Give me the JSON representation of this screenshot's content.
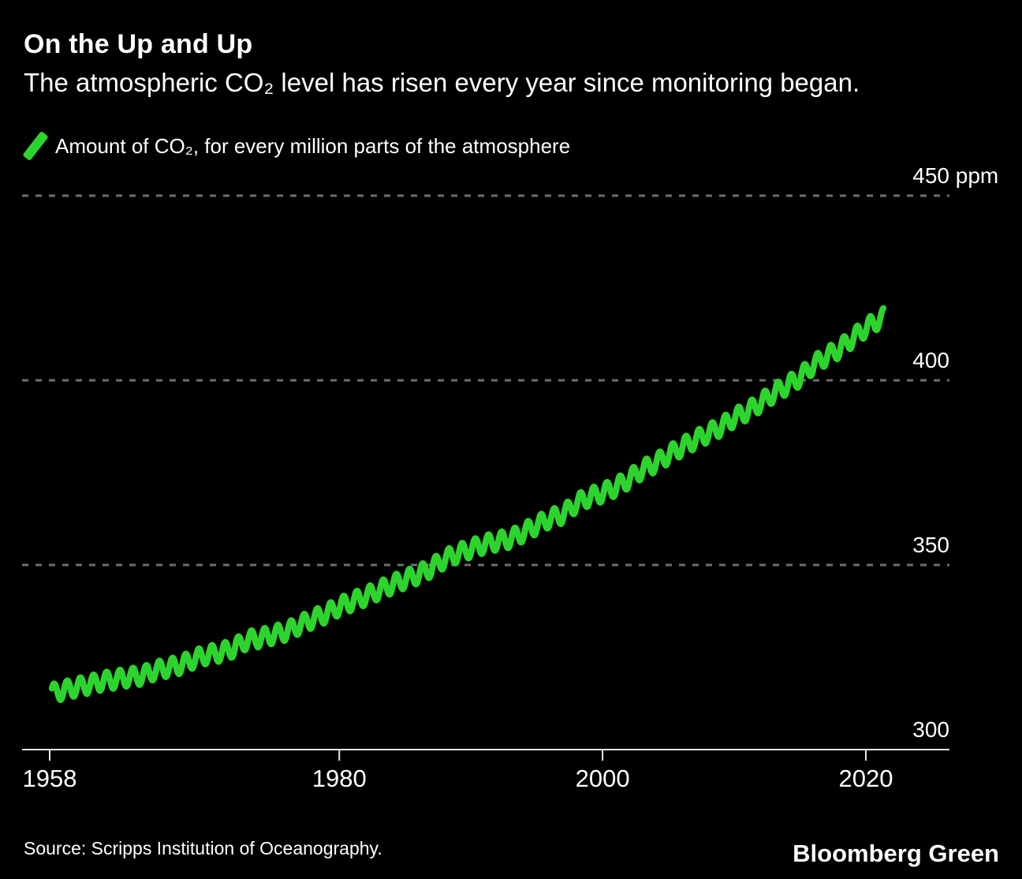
{
  "header": {
    "title": "On the Up and Up",
    "subtitle": "The atmospheric CO₂ level has risen every year since monitoring began."
  },
  "legend": {
    "swatch": "diagonal-line-swatch",
    "label": "Amount of CO₂, for every million parts of the atmosphere"
  },
  "footer": {
    "source": "Source: Scripps Institution of Oceanography.",
    "brand": "Bloomberg Green"
  },
  "colors": {
    "background": "#000000",
    "text": "#ffffff",
    "gridline": "#6e6e6e",
    "axis": "#e8e8e8",
    "series_green": "#2ed42e"
  },
  "chart_data": {
    "type": "line",
    "title": "On the Up and Up",
    "subtitle": "The atmospheric CO₂ level has risen every year since monitoring began.",
    "xlabel": "",
    "ylabel": "Amount of CO₂, for every million parts of the atmosphere",
    "unit": "ppm",
    "ylim": [
      300,
      450
    ],
    "xlim": [
      1958,
      2022
    ],
    "grid": "horizontal-dashed",
    "legend_position": "top-left",
    "yticks": [
      {
        "value": 300,
        "label": "300",
        "unit": "",
        "style": "solid-axis"
      },
      {
        "value": 350,
        "label": "350",
        "unit": "",
        "style": "dashed"
      },
      {
        "value": 400,
        "label": "400",
        "unit": "",
        "style": "dashed"
      },
      {
        "value": 450,
        "label": "450",
        "unit": " ppm",
        "style": "dashed"
      }
    ],
    "xticks": [
      {
        "value": 1958,
        "label": "1958"
      },
      {
        "value": 1980,
        "label": "1980"
      },
      {
        "value": 2000,
        "label": "2000"
      },
      {
        "value": 2020,
        "label": "2020"
      }
    ],
    "series": [
      {
        "name": "Amount of CO₂, for every million parts of the atmosphere",
        "color": "#2ed42e",
        "start_year": 1958,
        "x_start": 1958.17,
        "x_end": 2021.37,
        "seasonal_amplitude_ppm": 2.4,
        "annual_mean_ppm": [
          315.2,
          316.0,
          316.9,
          317.6,
          318.5,
          319.0,
          319.6,
          320.0,
          321.4,
          322.2,
          323.0,
          324.6,
          325.7,
          326.3,
          327.5,
          329.7,
          330.2,
          331.1,
          332.0,
          333.8,
          335.4,
          336.8,
          338.8,
          340.1,
          341.5,
          343.1,
          344.7,
          346.1,
          347.4,
          349.2,
          351.6,
          353.1,
          354.4,
          355.6,
          356.4,
          357.1,
          358.8,
          360.8,
          362.6,
          363.7,
          366.7,
          368.4,
          369.5,
          371.1,
          373.2,
          375.8,
          377.5,
          379.8,
          381.9,
          383.8,
          385.6,
          387.4,
          389.9,
          391.6,
          393.9,
          396.5,
          398.6,
          400.8,
          404.2,
          406.5,
          408.5,
          411.4,
          414.2,
          416.4
        ]
      }
    ]
  }
}
